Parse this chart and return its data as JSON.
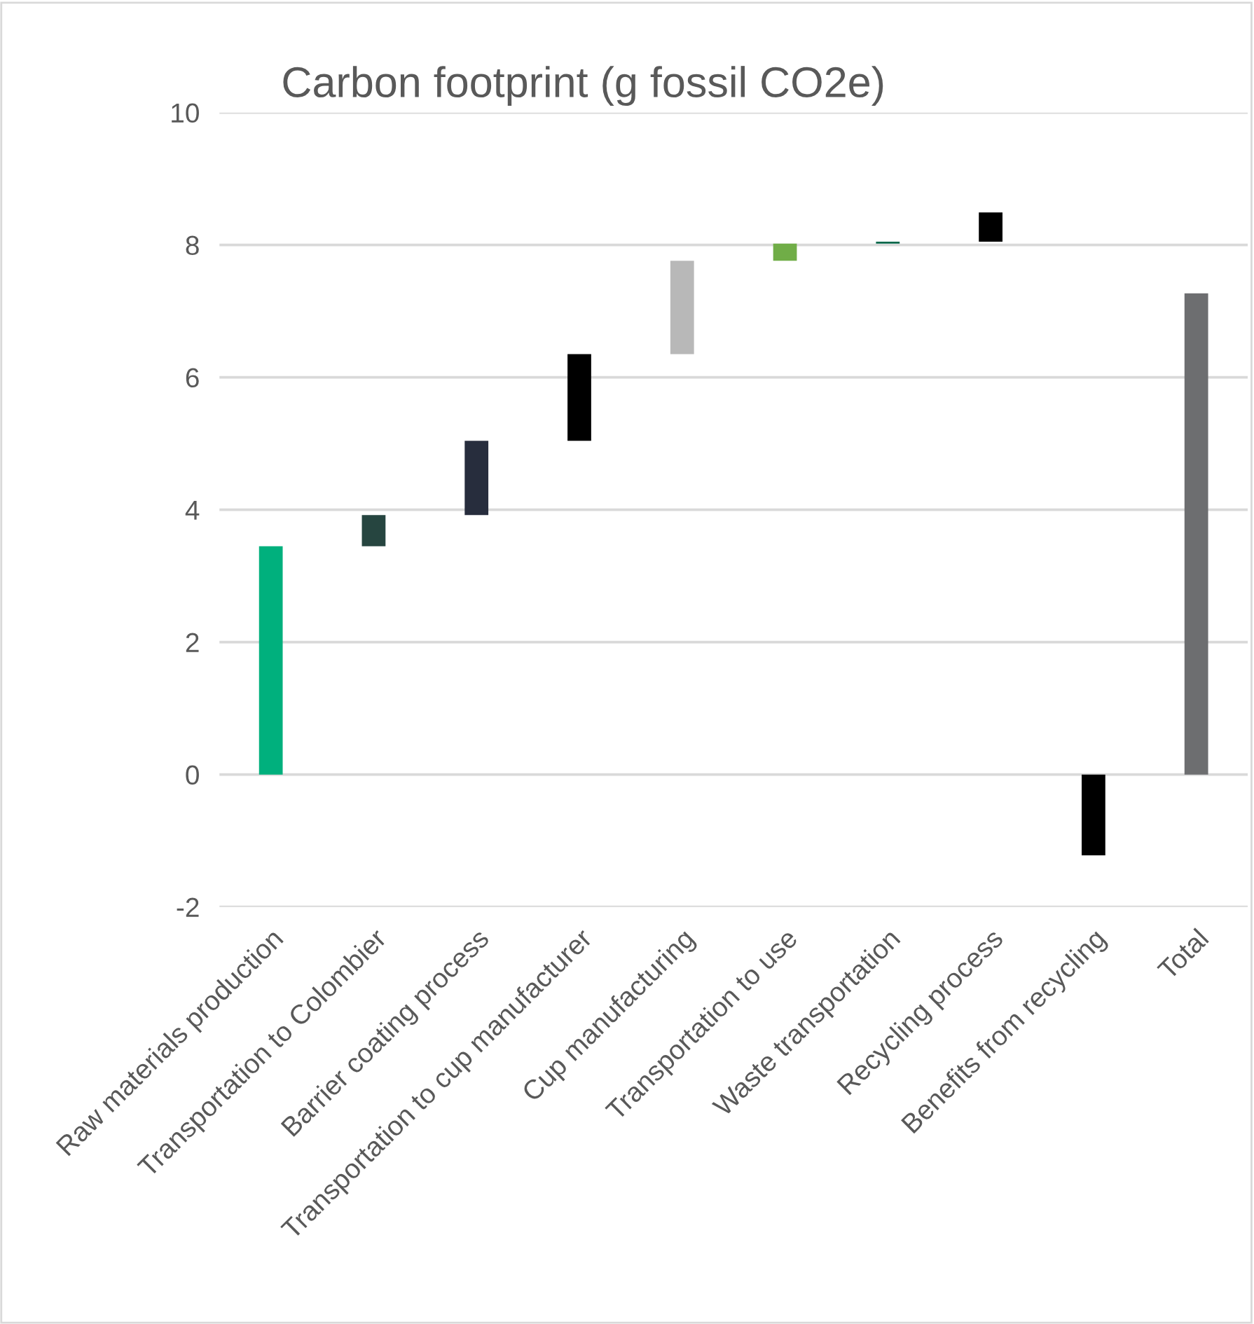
{
  "chart_data": {
    "type": "bar",
    "title": "Carbon footprint (g fossil CO2e)",
    "categories": [
      "Raw materials production",
      "Transportation to Colombier",
      "Barrier coating process",
      "Transportation to cup manufacturer",
      "Cup manufacturing",
      "Transportation to use",
      "Waste transportation",
      "Recycling process",
      "Benefits from recycling",
      "Total"
    ],
    "values": [
      3.45,
      0.47,
      1.12,
      1.31,
      1.41,
      0.26,
      0.03,
      0.44,
      -1.22,
      7.27
    ],
    "base": [
      0,
      3.45,
      3.92,
      5.04,
      6.35,
      7.76,
      8.02,
      8.05,
      0,
      0
    ],
    "colors": [
      "#00b07d",
      "#264540",
      "#272d3d",
      "#000000",
      "#b8b8b8",
      "#70ad47",
      "#00684b",
      "#000000",
      "#000000",
      "#6d6e70"
    ],
    "ylim": [
      -2,
      10
    ],
    "yticks": [
      -2,
      0,
      2,
      4,
      6,
      8,
      10
    ],
    "grid": "y",
    "legend": false
  }
}
